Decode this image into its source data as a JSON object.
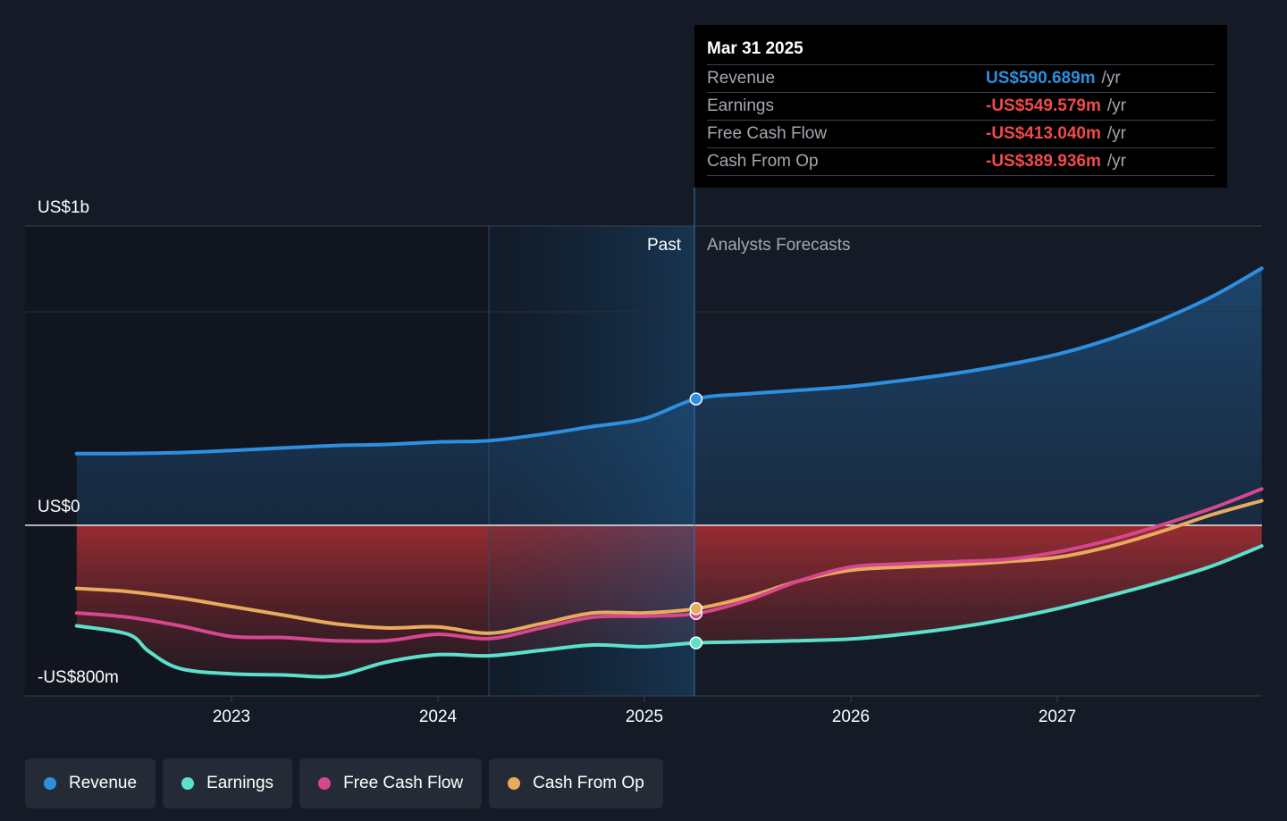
{
  "chart_data": {
    "type": "line",
    "y_tick_labels": [
      "US$1b",
      "US$0",
      "-US$800m"
    ],
    "x_tick_labels": [
      "2023",
      "2024",
      "2025",
      "2026",
      "2027"
    ],
    "ylim": [
      -800,
      1400
    ],
    "grid": true,
    "divider_labels": {
      "past": "Past",
      "forecast": "Analysts Forecasts"
    },
    "series": [
      {
        "name": "Revenue",
        "color": "#2d8fe0",
        "x": [
          2022.25,
          2022.5,
          2022.75,
          2023.0,
          2023.25,
          2023.5,
          2023.75,
          2024.0,
          2024.25,
          2024.5,
          2024.75,
          2025.0,
          2025.25,
          2025.5,
          2025.75,
          2026.0,
          2026.25,
          2026.5,
          2026.75,
          2027.0,
          2027.25,
          2027.5,
          2027.75,
          2027.99
        ],
        "y": [
          335,
          336,
          340,
          350,
          362,
          373,
          378,
          390,
          396,
          425,
          462,
          499,
          591,
          615,
          632,
          650,
          678,
          710,
          750,
          800,
          870,
          960,
          1070,
          1202
        ]
      },
      {
        "name": "Earnings",
        "color": "#5ce0cc",
        "x": [
          2022.25,
          2022.5,
          2022.6,
          2022.75,
          2023.0,
          2023.25,
          2023.5,
          2023.75,
          2024.0,
          2024.25,
          2024.5,
          2024.75,
          2025.0,
          2025.25,
          2025.5,
          2025.75,
          2026.0,
          2026.25,
          2026.5,
          2026.75,
          2027.0,
          2027.25,
          2027.5,
          2027.75,
          2027.99
        ],
        "y": [
          -470,
          -510,
          -590,
          -670,
          -695,
          -700,
          -705,
          -640,
          -605,
          -610,
          -585,
          -560,
          -568,
          -550,
          -545,
          -540,
          -532,
          -510,
          -480,
          -440,
          -390,
          -330,
          -265,
          -190,
          -97
        ]
      },
      {
        "name": "Free Cash Flow",
        "color": "#d6478e",
        "x": [
          2022.25,
          2022.5,
          2022.75,
          2023.0,
          2023.25,
          2023.5,
          2023.75,
          2024.0,
          2024.25,
          2024.5,
          2024.75,
          2025.0,
          2025.25,
          2025.5,
          2025.75,
          2026.0,
          2026.25,
          2026.5,
          2026.75,
          2027.0,
          2027.25,
          2027.5,
          2027.75,
          2027.99
        ],
        "y": [
          -410,
          -430,
          -470,
          -520,
          -525,
          -540,
          -540,
          -510,
          -530,
          -480,
          -430,
          -425,
          -413,
          -350,
          -260,
          -195,
          -180,
          -170,
          -160,
          -125,
          -70,
          0,
          80,
          170
        ]
      },
      {
        "name": "Cash From Op",
        "color": "#e8aa5c",
        "x": [
          2022.25,
          2022.5,
          2022.75,
          2023.0,
          2023.25,
          2023.5,
          2023.75,
          2024.0,
          2024.25,
          2024.5,
          2024.75,
          2025.0,
          2025.25,
          2025.5,
          2025.75,
          2026.0,
          2026.25,
          2026.5,
          2026.75,
          2027.0,
          2027.25,
          2027.5,
          2027.75,
          2027.99
        ],
        "y": [
          -295,
          -310,
          -340,
          -380,
          -420,
          -460,
          -480,
          -475,
          -505,
          -460,
          -410,
          -410,
          -390,
          -335,
          -260,
          -210,
          -195,
          -185,
          -170,
          -150,
          -100,
          -30,
          50,
          115
        ]
      }
    ],
    "marker_x": 2025.25
  },
  "tooltip": {
    "date": "Mar 31 2025",
    "rows": [
      {
        "label": "Revenue",
        "value": "US$590.689m",
        "unit": "/yr",
        "color": "#2d8fe0"
      },
      {
        "label": "Earnings",
        "value": "-US$549.579m",
        "unit": "/yr",
        "color": "#f04b4b"
      },
      {
        "label": "Free Cash Flow",
        "value": "-US$413.040m",
        "unit": "/yr",
        "color": "#f04b4b"
      },
      {
        "label": "Cash From Op",
        "value": "-US$389.936m",
        "unit": "/yr",
        "color": "#f04b4b"
      }
    ]
  },
  "legend": [
    {
      "label": "Revenue",
      "color": "#2d8fe0"
    },
    {
      "label": "Earnings",
      "color": "#5ce0cc"
    },
    {
      "label": "Free Cash Flow",
      "color": "#d6478e"
    },
    {
      "label": "Cash From Op",
      "color": "#e8aa5c"
    }
  ]
}
